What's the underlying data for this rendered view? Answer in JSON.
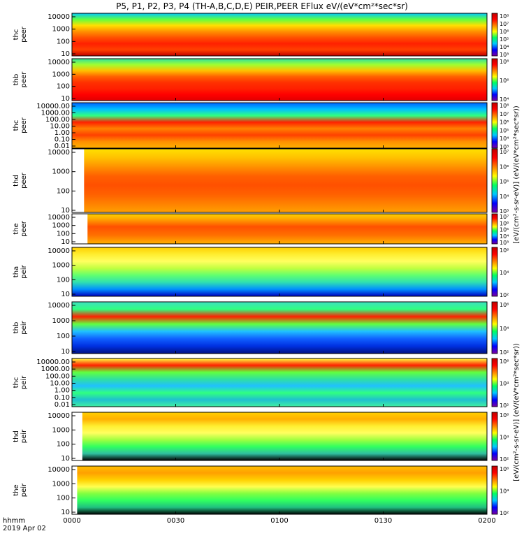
{
  "header": {
    "title": "P5, P1, P2, P3, P4 (TH-A,B,C,D,E) PEIR,PEER EFlux eV/(eV*cm²*sec*sr)"
  },
  "chart_data": {
    "type": "heatmap",
    "title": "P5, P1, P2, P3, P4 (TH-A,B,C,D,E) PEIR,PEER EFlux eV/(eV*cm²*sec*sr)",
    "x_ticks": [
      "0000",
      "0030",
      "0100",
      "0130",
      "0200"
    ],
    "x_tick_minutes": [
      0,
      30,
      60,
      90,
      120
    ],
    "x_range_minutes": [
      0,
      120
    ],
    "x_corner_label": [
      "hhmm",
      "2019 Apr 02"
    ],
    "colorbar_label_peer": "[eV/(cm²-s-sr-eV)] (eV/(eV*cm²*sec*sr))",
    "colorbar_label_peir": "[eV/(cm²-s-sr-eV)] (eV/(eV*cm²*sec*sr))",
    "colormap": [
      "#7b00a0",
      "#0000ff",
      "#00c8ff",
      "#00ff60",
      "#ffff00",
      "#ff8000",
      "#ff0000",
      "#c00000"
    ],
    "panels": [
      {
        "name": "thc peer",
        "ylabel": [
          "thc",
          "peer"
        ],
        "yticks": [
          "10",
          "100",
          "1000",
          "10000"
        ],
        "cbar_ticks": [
          "10³",
          "10⁴",
          "10⁵",
          "10⁶",
          "10⁷",
          "10⁸"
        ],
        "coverage_start_minutes": 0
      },
      {
        "name": "thb peer",
        "ylabel": [
          "thb",
          "peer"
        ],
        "yticks": [
          "10",
          "100",
          "1000",
          "10000"
        ],
        "cbar_ticks": [
          "10⁴",
          "10⁶",
          "10⁸"
        ],
        "coverage_start_minutes": 0
      },
      {
        "name": "thc peer",
        "ylabel": [
          "thc",
          "peer"
        ],
        "yticks": [
          "0.01",
          "0.10",
          "1.00",
          "10.00",
          "100.00",
          "1000.00",
          "10000.00"
        ],
        "cbar_ticks": [
          "10³",
          "10⁴",
          "10⁵",
          "10⁶",
          "10⁷",
          "10⁸"
        ],
        "coverage_start_minutes": 0
      },
      {
        "name": "thd peer",
        "ylabel": [
          "thd",
          "peer"
        ],
        "yticks": [
          "10",
          "100",
          "1000",
          "10000"
        ],
        "cbar_ticks": [
          "10³",
          "10⁴",
          "10⁵",
          "10⁶",
          "10⁷"
        ],
        "coverage_start_minutes": 3.5
      },
      {
        "name": "the peer",
        "ylabel": [
          "the",
          "peer"
        ],
        "yticks": [
          "10",
          "100",
          "1000",
          "10000"
        ],
        "cbar_ticks": [
          "10³",
          "10⁴",
          "10⁵",
          "10⁶",
          "10⁷"
        ],
        "coverage_start_minutes": 4.5
      },
      {
        "name": "tha peir",
        "ylabel": [
          "tha",
          "peir"
        ],
        "yticks": [
          "10",
          "100",
          "1000",
          "10000"
        ],
        "cbar_ticks": [
          "10²",
          "10⁴",
          "10⁶"
        ],
        "coverage_start_minutes": 0
      },
      {
        "name": "thb peir",
        "ylabel": [
          "thb",
          "peir"
        ],
        "yticks": [
          "10",
          "100",
          "1000",
          "10000"
        ],
        "cbar_ticks": [
          "10²",
          "10⁴",
          "10⁶"
        ],
        "coverage_start_minutes": 0
      },
      {
        "name": "thc peir",
        "ylabel": [
          "thc",
          "peir"
        ],
        "yticks": [
          "0.01",
          "0.10",
          "1.00",
          "10.00",
          "100.00",
          "1000.00",
          "10000.00"
        ],
        "cbar_ticks": [
          "10²",
          "10⁴",
          "10⁶"
        ],
        "coverage_start_minutes": 0
      },
      {
        "name": "thd peir",
        "ylabel": [
          "thd",
          "peir"
        ],
        "yticks": [
          "10",
          "100",
          "1000",
          "10000"
        ],
        "cbar_ticks": [
          "10²",
          "10⁴",
          "10⁶"
        ],
        "coverage_start_minutes": 3
      },
      {
        "name": "the peir",
        "ylabel": [
          "the",
          "peir"
        ],
        "yticks": [
          "10",
          "100",
          "1000",
          "10000"
        ],
        "cbar_ticks": [
          "10²",
          "10⁴",
          "10⁶"
        ],
        "coverage_start_minutes": 1.5
      }
    ]
  }
}
